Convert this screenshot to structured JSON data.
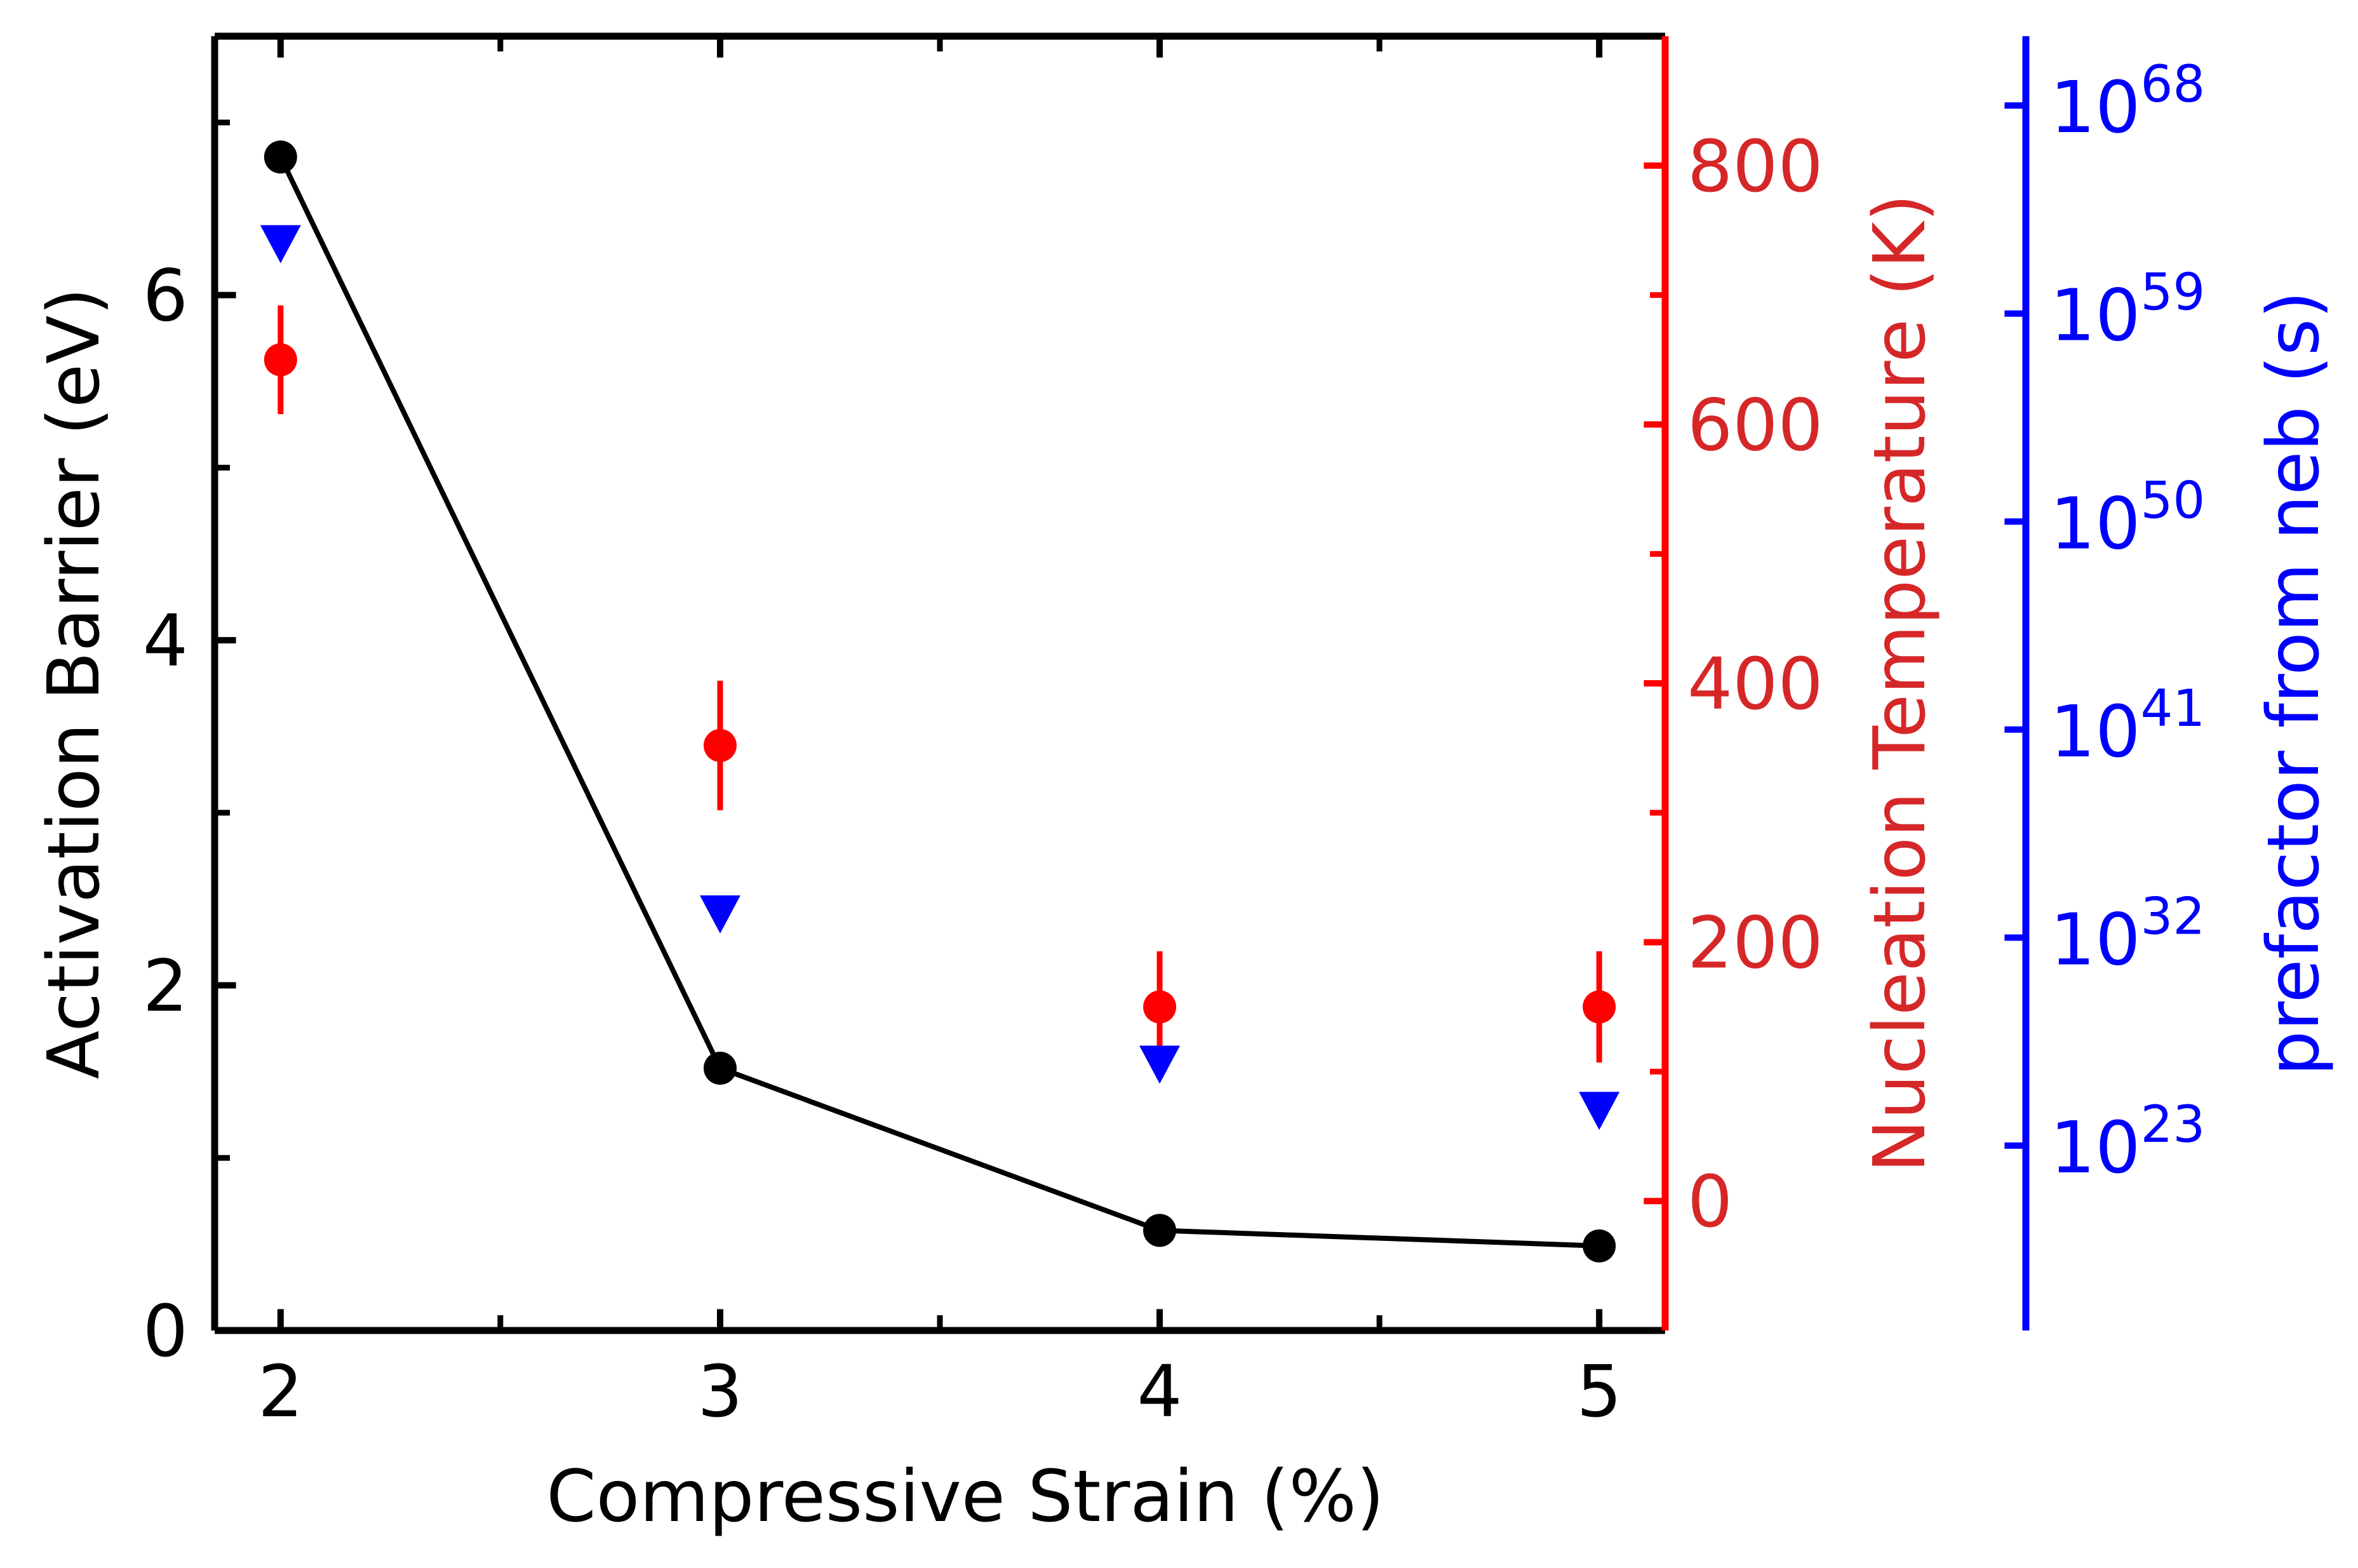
{
  "chart_data": {
    "type": "scatter",
    "xlabel": "Compressive Strain (%)",
    "x_ticks": [
      2,
      3,
      4,
      5
    ],
    "xlim": [
      1.85,
      5.15
    ],
    "y_axes": {
      "left": {
        "label": "Activation Barrier (eV)",
        "ylim": [
          0,
          7.5
        ],
        "ticks": [
          0,
          2,
          4,
          6
        ],
        "color": "#000000"
      },
      "right": {
        "label": "Nucleation Temperature (K)",
        "ylim": [
          -100,
          900
        ],
        "ticks": [
          0,
          200,
          400,
          600,
          800
        ],
        "color": "#d62728",
        "spine_color": "#ff0000"
      },
      "far_right": {
        "label": "prefactor from neb (s)",
        "scale": "log",
        "ylim_exponent": [
          15,
          71
        ],
        "ticks": [
          {
            "base": "10",
            "exp": "23",
            "value": 23
          },
          {
            "base": "10",
            "exp": "32",
            "value": 32
          },
          {
            "base": "10",
            "exp": "41",
            "value": 41
          },
          {
            "base": "10",
            "exp": "50",
            "value": 50
          },
          {
            "base": "10",
            "exp": "59",
            "value": 59
          },
          {
            "base": "10",
            "exp": "68",
            "value": 68
          }
        ],
        "color": "#0000ff"
      }
    },
    "series": [
      {
        "axis": "left",
        "marker": "circle",
        "line": true,
        "color": "#000000",
        "x": [
          2,
          3,
          4,
          5
        ],
        "y": [
          6.8,
          1.52,
          0.58,
          0.49
        ]
      },
      {
        "axis": "right",
        "marker": "circle",
        "line": false,
        "color": "#ff0000",
        "x": [
          2,
          3,
          4,
          5
        ],
        "y": [
          650,
          352,
          150,
          150
        ],
        "yerr": [
          42,
          50,
          43,
          43
        ]
      },
      {
        "axis": "far_right",
        "marker": "triangle-down",
        "line": false,
        "color": "#0000ff",
        "x": [
          2,
          3,
          4,
          5
        ],
        "y": [
          62,
          33,
          26.5,
          24.5
        ]
      }
    ]
  }
}
